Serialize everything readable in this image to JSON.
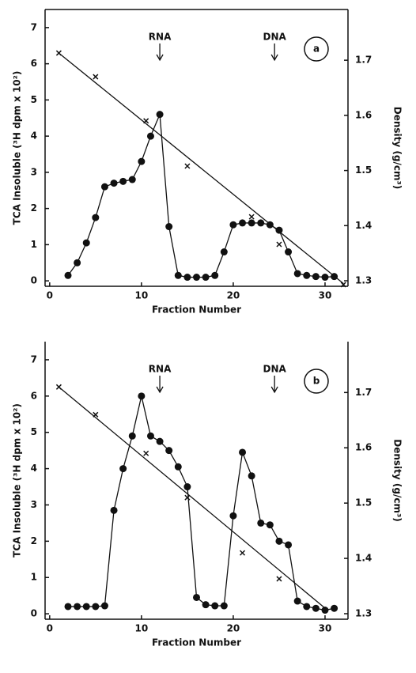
{
  "chart_data": [
    {
      "type": "line",
      "panel_label": "a",
      "xlabel": "Fraction Number",
      "ylabel": "TCA Insoluble (³H dpm x 10²)",
      "y2label": "Density (g/cm³)",
      "xlim": [
        -0.5,
        32.5
      ],
      "xticks": [
        0,
        10,
        20,
        30
      ],
      "ylim": [
        -0.15,
        7.5
      ],
      "yticks": [
        0,
        1,
        2,
        3,
        4,
        5,
        6,
        7
      ],
      "y2lim": [
        1.29,
        1.792
      ],
      "y2ticks": [
        1.3,
        1.4,
        1.5,
        1.6,
        1.7
      ],
      "series": [
        {
          "color": "#111111",
          "marker": "circle",
          "line": true,
          "x": [
            2,
            3,
            4,
            5,
            6,
            7,
            8,
            9,
            10,
            11,
            12,
            13,
            14,
            15,
            16,
            17,
            18,
            19,
            20,
            21,
            22,
            23,
            24,
            25,
            26,
            27,
            28,
            29,
            30,
            31
          ],
          "values": [
            0.15,
            0.5,
            1.05,
            1.75,
            2.6,
            2.7,
            2.75,
            2.8,
            3.3,
            4.0,
            4.6,
            1.5,
            0.15,
            0.1,
            0.1,
            0.1,
            0.15,
            0.8,
            1.55,
            1.6,
            1.6,
            1.6,
            1.55,
            1.4,
            0.8,
            0.2,
            0.15,
            0.12,
            0.1,
            0.12
          ]
        },
        {
          "color": "#111111",
          "marker": "x",
          "line": false,
          "axis": "y2",
          "x": [
            1,
            5,
            10.5,
            15,
            22,
            25,
            32
          ],
          "values": [
            1.713,
            1.67,
            1.59,
            1.508,
            1.416,
            1.366,
            1.293
          ]
        },
        {
          "color": "#111111",
          "marker": "none",
          "line": true,
          "axis": "y2",
          "x": [
            1,
            32
          ],
          "values": [
            1.713,
            1.295
          ]
        }
      ],
      "annotations": [
        {
          "text": "RNA",
          "x": 12
        },
        {
          "text": "DNA",
          "x": 24.5
        }
      ]
    },
    {
      "type": "line",
      "panel_label": "b",
      "xlabel": "Fraction Number",
      "ylabel": "TCA Insoluble (³H dpm x 10²)",
      "y2label": "Density (g/cm³)",
      "xlim": [
        -0.5,
        32.5
      ],
      "xticks": [
        0,
        10,
        20,
        30
      ],
      "ylim": [
        -0.15,
        7.5
      ],
      "yticks": [
        0,
        1,
        2,
        3,
        4,
        5,
        6,
        7
      ],
      "y2lim": [
        1.29,
        1.792
      ],
      "y2ticks": [
        1.3,
        1.4,
        1.5,
        1.6,
        1.7
      ],
      "series": [
        {
          "color": "#111111",
          "marker": "circle",
          "line": true,
          "x": [
            2,
            3,
            4,
            5,
            6,
            7,
            8,
            9,
            10,
            11,
            12,
            13,
            14,
            15,
            16,
            17,
            18,
            19,
            20,
            21,
            22,
            23,
            24,
            25,
            26,
            27,
            28,
            29,
            30,
            31
          ],
          "values": [
            0.2,
            0.2,
            0.2,
            0.2,
            0.22,
            2.85,
            4.0,
            4.9,
            6.0,
            4.9,
            4.75,
            4.5,
            4.05,
            3.5,
            0.45,
            0.25,
            0.22,
            0.22,
            2.7,
            4.45,
            3.8,
            2.5,
            2.45,
            2.0,
            1.9,
            0.35,
            0.2,
            0.15,
            0.1,
            0.15
          ]
        },
        {
          "color": "#111111",
          "marker": "x",
          "line": false,
          "axis": "y2",
          "x": [
            1,
            5,
            10.5,
            15,
            21,
            25
          ],
          "values": [
            1.71,
            1.66,
            1.59,
            1.51,
            1.41,
            1.363
          ]
        },
        {
          "color": "#111111",
          "marker": "none",
          "line": true,
          "axis": "y2",
          "x": [
            1,
            30
          ],
          "values": [
            1.71,
            1.31
          ]
        }
      ],
      "annotations": [
        {
          "text": "RNA",
          "x": 12
        },
        {
          "text": "DNA",
          "x": 24.5
        }
      ]
    }
  ]
}
